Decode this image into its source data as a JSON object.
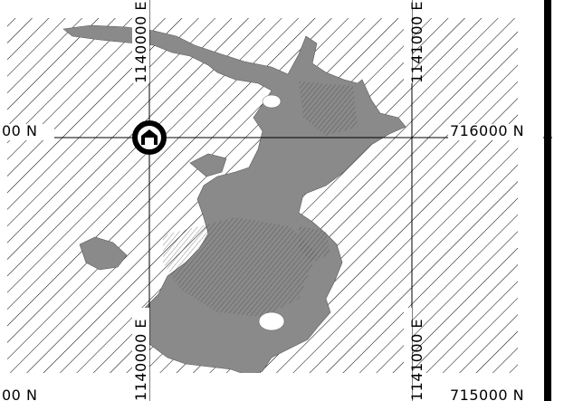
{
  "map": {
    "grid_labels": {
      "north_left_top": "00 N",
      "north_right_top": "716000 N",
      "north_left_bottom": "00 N",
      "north_right_bottom": "715000 N",
      "east_left_top": "1140000 E",
      "east_right_top": "1141000 E",
      "east_left_bottom": "1140000 E",
      "east_right_bottom": "1141000 E"
    },
    "colors": {
      "hatch": "#000000",
      "fill_area": "#8a8a8a",
      "background": "#ffffff",
      "border": "#000000"
    },
    "marker": {
      "icon": "house-in-circle-icon"
    }
  }
}
